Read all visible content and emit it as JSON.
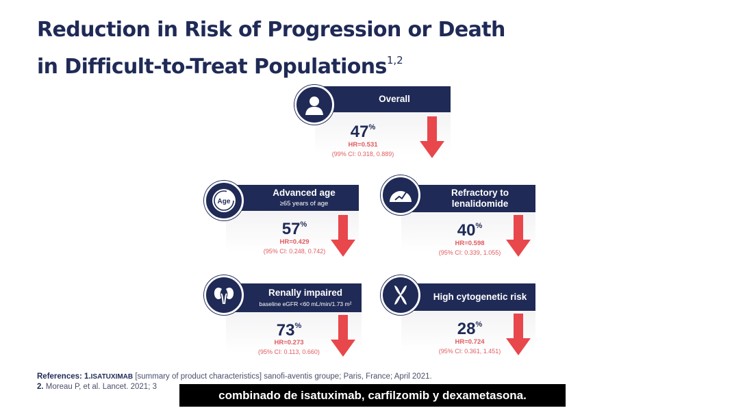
{
  "slide": {
    "title_line1": "Reduction in Risk of Progression or Death",
    "title_line2": "in Difficult-to-Treat Populations",
    "title_sup": "1,2"
  },
  "cards": {
    "overall": {
      "label": "Overall",
      "pct": "47",
      "pct_symbol": "%",
      "hr": "HR=0.531",
      "ci": "(99% CI: 0.318, 0.889)",
      "icon": "person-icon"
    },
    "advanced_age": {
      "label": "Advanced age",
      "sublabel": "≥65 years of age",
      "pct": "57",
      "pct_symbol": "%",
      "hr": "HR=0.429",
      "ci": "(95% CI: 0.248, 0.742)",
      "icon": "age-icon",
      "icon_text": "Age"
    },
    "refractory": {
      "label_line1": "Refractory to",
      "label_line2": "lenalidomide",
      "pct": "40",
      "pct_symbol": "%",
      "hr": "HR=0.598",
      "ci": "(95% CI: 0.339, 1.055)",
      "icon": "gauge-icon"
    },
    "renal": {
      "label": "Renally impaired",
      "sublabel": "baseline eGFR <60 mL/min/1.73 m²",
      "pct": "73",
      "pct_symbol": "%",
      "hr": "HR=0.273",
      "ci": "(95% CI: 0.113, 0.660)",
      "icon": "kidney-icon"
    },
    "cytogenetic": {
      "label": "High cytogenetic risk",
      "pct": "28",
      "pct_symbol": "%",
      "hr": "HR=0.724",
      "ci": "(95% CI: 0.361, 1.451)",
      "icon": "chromosome-icon"
    }
  },
  "references": {
    "label": "References:",
    "ref1_num": "1.",
    "ref1_drug": "ISATUXIMAB",
    "ref1_text": "[summary of product characteristics] sanofi-aventis groupe; Paris, France; April 2021.",
    "ref2_num": "2.",
    "ref2_text": "Moreau P, et al. Lancet. 2021; 3"
  },
  "subtitle": {
    "text": "combinado de isatuximab, carfilzomib y dexametasona."
  },
  "colors": {
    "navy": "#1f2a56",
    "red": "#e05a5e",
    "arrow": "#e8474c"
  }
}
